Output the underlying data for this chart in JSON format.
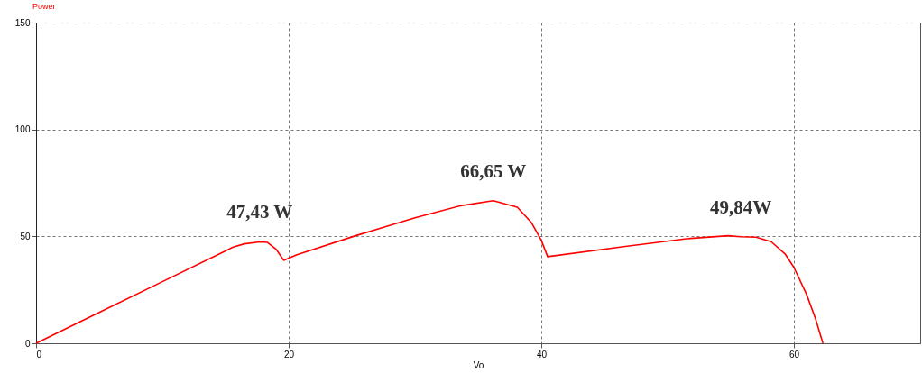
{
  "chart_data": {
    "type": "line",
    "title": "Power",
    "xlabel": "Vo",
    "xlim": [
      0,
      70
    ],
    "xticks": [
      0,
      20,
      40,
      60
    ],
    "ylim": [
      0,
      150
    ],
    "yticks": [
      0,
      50,
      100,
      150
    ],
    "grid": true,
    "series": [
      {
        "color": "#ff0000",
        "x": [
          0,
          5,
          10,
          15,
          15.6,
          16.5,
          17.7,
          18.3,
          19,
          19.6,
          20.6,
          25.3,
          30.0,
          33.6,
          36.2,
          38.1,
          39.2,
          40.0,
          40.5,
          46.8,
          51.5,
          54.8,
          55.8,
          57.0,
          58.2,
          59.3,
          60.0,
          61.0,
          61.7,
          62.3
        ],
        "values": [
          0,
          14.4,
          28.8,
          43.2,
          45,
          46.5,
          47.43,
          47.2,
          44,
          38.8,
          41.3,
          50.3,
          58.7,
          64.3,
          66.65,
          63.6,
          56.6,
          48.2,
          40.5,
          45.4,
          48.9,
          50.3,
          49.84,
          49.6,
          47.5,
          41.8,
          35.5,
          22.9,
          11.7,
          0
        ]
      }
    ],
    "annotations": [
      {
        "text": "47,43 W",
        "x": 17.7,
        "y": 47.43
      },
      {
        "text": "66,65 W",
        "x": 36.2,
        "y": 66.65
      },
      {
        "text": "49,84W",
        "x": 55.8,
        "y": 49.84
      }
    ]
  }
}
